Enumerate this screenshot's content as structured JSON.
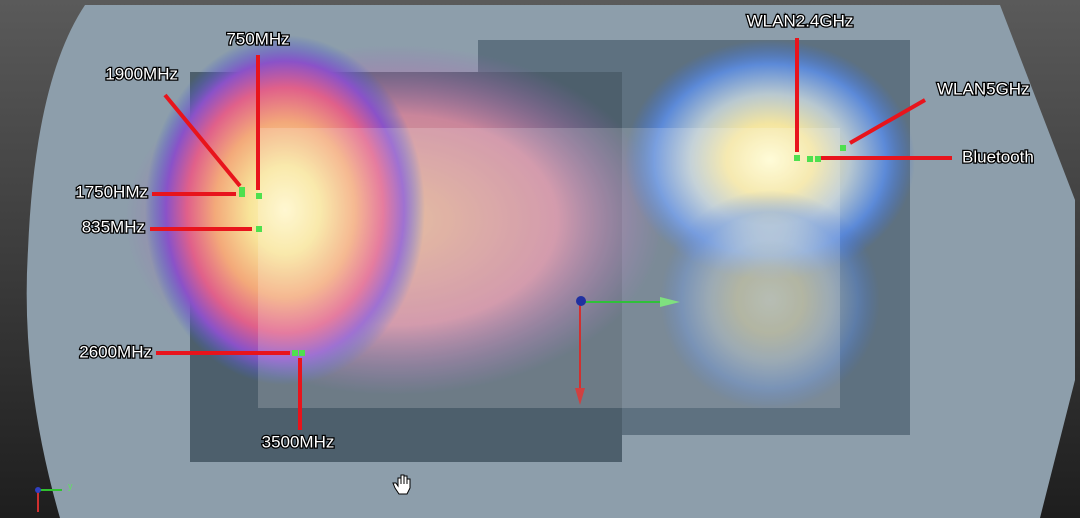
{
  "viewport": {
    "axis_label": "y"
  },
  "labels": [
    {
      "text": "750MHz"
    },
    {
      "text": "1900MHz"
    },
    {
      "text": "1750HMz"
    },
    {
      "text": "835MHz"
    },
    {
      "text": "2600MHz"
    },
    {
      "text": "3500MHz"
    },
    {
      "text": "WLAN2.4GHz"
    },
    {
      "text": "WLAN5GHz"
    },
    {
      "text": "Bluetooth"
    }
  ]
}
